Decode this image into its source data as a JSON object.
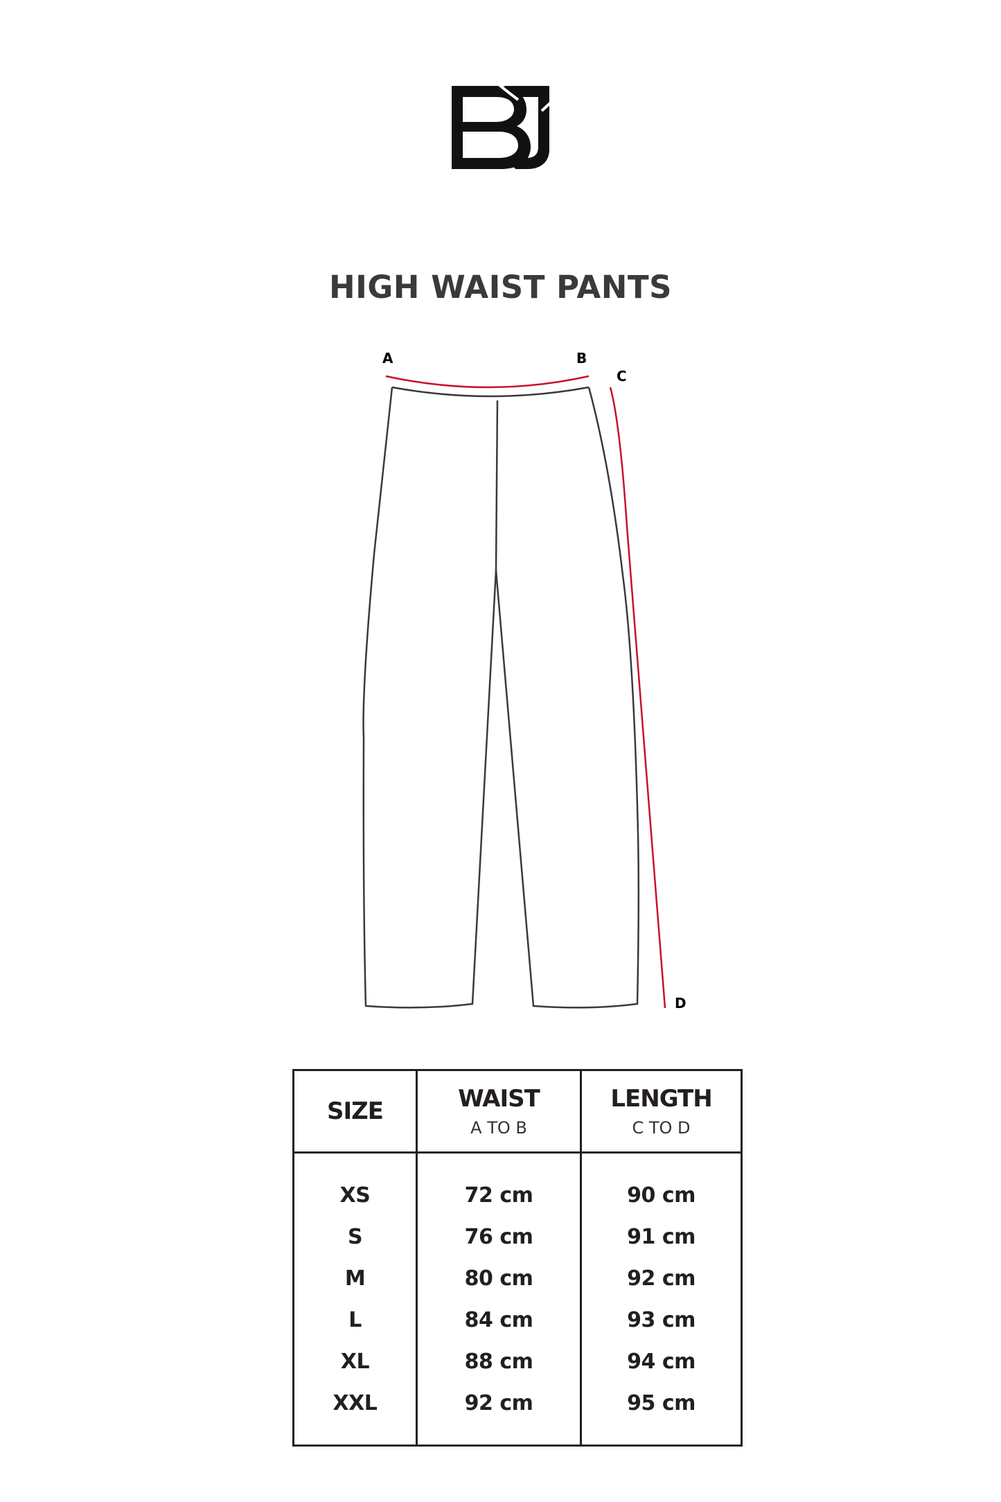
{
  "brand": {
    "logo_text": "BJ"
  },
  "title": "HIGH WAIST PANTS",
  "diagram": {
    "points": {
      "a": "A",
      "b": "B",
      "c": "C",
      "d": "D"
    },
    "measure_color": "#c8102e",
    "outline_color": "#3a3a3a"
  },
  "table": {
    "headers": [
      {
        "label": "SIZE",
        "sub": ""
      },
      {
        "label": "WAIST",
        "sub": "A TO B"
      },
      {
        "label": "LENGTH",
        "sub": "C TO D"
      }
    ],
    "rows": [
      {
        "size": "XS",
        "waist": "72 cm",
        "length": "90 cm"
      },
      {
        "size": "S",
        "waist": "76 cm",
        "length": "91 cm"
      },
      {
        "size": "M",
        "waist": "80 cm",
        "length": "92 cm"
      },
      {
        "size": "L",
        "waist": "84 cm",
        "length": "93 cm"
      },
      {
        "size": "XL",
        "waist": "88 cm",
        "length": "94 cm"
      },
      {
        "size": "XXL",
        "waist": "92 cm",
        "length": "95 cm"
      }
    ]
  }
}
